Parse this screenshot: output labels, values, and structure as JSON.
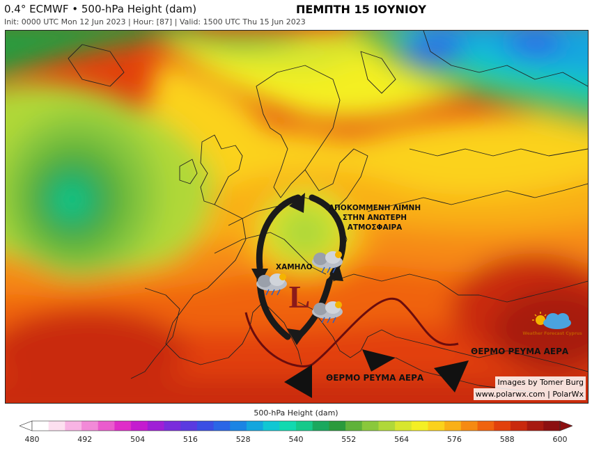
{
  "header": {
    "title": "0.4° ECMWF • 500-hPa Height (dam)",
    "subtitle": "Init: 0000 UTC Mon 12 Jun 2023 | Hour: [87] | Valid: 1500 UTC Thu 15 Jun 2023",
    "date_title": "ΠΕΜΠΤΗ 15 ΙΟΥΝΙΟΥ"
  },
  "map": {
    "region": "Europe",
    "field": "500-hPa geopotential height",
    "low_symbol": "L",
    "annotations": {
      "cutoff_low": [
        "ΑΠΟΚΟΜΜΕΝΗ ΛΙΜΝΗ",
        "ΣΤΗΝ ΑΝΩΤΕΡΗ",
        "ΑΤΜΟΣΦΑΙΡΑ"
      ],
      "low": "ΧΑΜΗΛΟ",
      "warm_current_left": "ΘΕΡΜΟ ΡΕΥΜΑ ΑΕΡΑ",
      "warm_current_right": "ΘΕΡΜΟ ΡΕΥΜΑ ΑΕΡΑ"
    },
    "icons": [
      "storm-cloud-icon",
      "storm-cloud-icon",
      "storm-cloud-icon",
      "sun-cloud-logo-icon"
    ],
    "logo_text": "Weather Forecast Cyprus",
    "colors": {
      "low_symbol": "#8b1a1a",
      "jet_stream": "#6b0d0d",
      "circulation_arrows": "#1a1a1a"
    }
  },
  "credits": {
    "line1": "Images by Tomer Burg",
    "line2": "www.polarwx.com | PolarWx"
  },
  "colorbar": {
    "title": "500-hPa Height (dam)",
    "min": 480,
    "max": 600,
    "step": 3,
    "tick_labels": [
      "480",
      "492",
      "504",
      "516",
      "528",
      "540",
      "552",
      "564",
      "576",
      "588",
      "600"
    ],
    "colors": [
      "#ffffff",
      "#fde0f0",
      "#f8b4e4",
      "#f28ad8",
      "#ea5ccd",
      "#df2dc8",
      "#c41ccf",
      "#9f1fd6",
      "#7a2cdc",
      "#5a3ae0",
      "#3b4ee4",
      "#2a66e6",
      "#1a84e4",
      "#13a6de",
      "#10c7d3",
      "#12d9b0",
      "#16c98a",
      "#1aa85e",
      "#2a9a3c",
      "#5fb23a",
      "#8ac83c",
      "#b0d839",
      "#d8e62e",
      "#f4ef24",
      "#fbd21c",
      "#f9b017",
      "#f68a12",
      "#f0630e",
      "#e2410c",
      "#c9290d",
      "#a71a10",
      "#8c1011"
    ]
  }
}
